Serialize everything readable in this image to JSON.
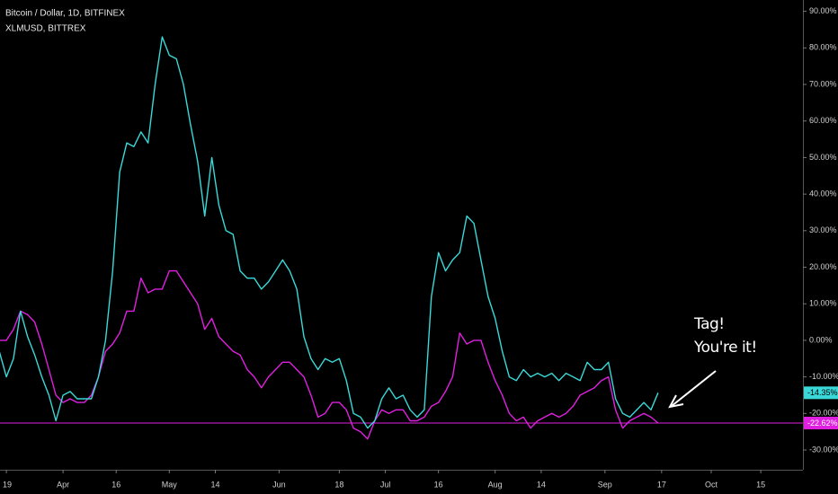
{
  "chart_data": {
    "type": "line",
    "x": [
      -18,
      -16,
      -14,
      -12,
      -10,
      -8,
      -6,
      -4,
      -2,
      0,
      2,
      4,
      6,
      8,
      10,
      12,
      14,
      16,
      18,
      20,
      22,
      24,
      26,
      28,
      30,
      32,
      34,
      36,
      38,
      40,
      42,
      44,
      46,
      48,
      50,
      52,
      54,
      56,
      58,
      60,
      62,
      64,
      66,
      68,
      70,
      72,
      74,
      76,
      78,
      80,
      82,
      84,
      86,
      88,
      90,
      92,
      94,
      96,
      98,
      100,
      102,
      104,
      106,
      108,
      110,
      112,
      114,
      116,
      118,
      120,
      122,
      124,
      126,
      128,
      130,
      132,
      134,
      136,
      138,
      140,
      142,
      144,
      146,
      148,
      150,
      152,
      154,
      156,
      158,
      160,
      162,
      164,
      166,
      168
    ],
    "series": [
      {
        "name": "Bitcoin / Dollar, 1D, BITFINEX",
        "color": "#e020e0",
        "price_line": true,
        "values": [
          0,
          0,
          3,
          8,
          7,
          5,
          -1,
          -8,
          -15,
          -17,
          -16,
          -17,
          -17,
          -15,
          -10,
          -3,
          -1,
          2,
          8,
          8,
          17,
          13,
          14,
          14,
          19,
          19,
          16,
          13,
          10,
          3,
          6,
          1,
          -1,
          -3,
          -4,
          -8,
          -10,
          -13,
          -10,
          -8,
          -6,
          -6,
          -8,
          -10,
          -15,
          -21,
          -20,
          -17,
          -17,
          -19,
          -24,
          -25,
          -27,
          -22,
          -19,
          -20,
          -19,
          -19,
          -22,
          -22,
          -21,
          -18,
          -17,
          -14,
          -10,
          2,
          -1,
          0,
          0,
          -6,
          -11,
          -15,
          -20,
          -22,
          -21,
          -24,
          -22,
          -21,
          -20,
          -21,
          -20,
          -18,
          -15,
          -14,
          -13,
          -11,
          -10,
          -19,
          -24,
          -22,
          -21,
          -20,
          -21,
          -22.62
        ],
        "value_labels": [
          null,
          null,
          null,
          null,
          null,
          null,
          null,
          null,
          null,
          null,
          null,
          null,
          null,
          null,
          null,
          null,
          null,
          null,
          null,
          null,
          null,
          null,
          null,
          null,
          null,
          null,
          null,
          null,
          null,
          null,
          null,
          null,
          null,
          null,
          null,
          null,
          null,
          null,
          null,
          null,
          null,
          null,
          null,
          null,
          null,
          null,
          null,
          null,
          null,
          null,
          null,
          null,
          null,
          null,
          null,
          null,
          null,
          null,
          null,
          null,
          null,
          null,
          null,
          null,
          null,
          null,
          null,
          null,
          null,
          null,
          null,
          null,
          null,
          null,
          null,
          null,
          null,
          null,
          null,
          null,
          null,
          null,
          null,
          null,
          null,
          null,
          null,
          null,
          null,
          null,
          null,
          null,
          null,
          "-22.62%"
        ]
      },
      {
        "name": "XLMUSD, BITTREX",
        "color": "#3ad8d8",
        "values": [
          -3,
          -10,
          -5,
          8,
          1,
          -4,
          -10,
          -15,
          -22,
          -15,
          -14,
          -16,
          -16,
          -16,
          -10,
          0,
          19,
          46,
          54,
          53,
          57,
          54,
          70,
          83,
          78,
          77,
          70,
          59,
          49,
          34,
          50,
          37,
          30,
          29,
          19,
          17,
          17,
          14,
          16,
          19,
          22,
          19,
          14,
          1,
          -5,
          -8,
          -5,
          -6,
          -5,
          -11,
          -20,
          -21,
          -24,
          -22,
          -16,
          -13,
          -16,
          -15,
          -19,
          -21,
          -19,
          12,
          24,
          19,
          22,
          24,
          34,
          32,
          22,
          12,
          6,
          -3,
          -10,
          -11,
          -8,
          -10,
          -9,
          -10,
          -9,
          -11,
          -9,
          -10,
          -11,
          -6,
          -8,
          -8,
          -6,
          -16,
          -20,
          -21,
          -19,
          -17,
          -19,
          -14.35
        ],
        "value_labels": [
          null,
          null,
          null,
          null,
          null,
          null,
          null,
          null,
          null,
          null,
          null,
          null,
          null,
          null,
          null,
          null,
          null,
          null,
          null,
          null,
          null,
          null,
          null,
          null,
          null,
          null,
          null,
          null,
          null,
          null,
          null,
          null,
          null,
          null,
          null,
          null,
          null,
          null,
          null,
          null,
          null,
          null,
          null,
          null,
          null,
          null,
          null,
          null,
          null,
          null,
          null,
          null,
          null,
          null,
          null,
          null,
          null,
          null,
          null,
          null,
          null,
          null,
          null,
          null,
          null,
          null,
          null,
          null,
          null,
          null,
          null,
          null,
          null,
          null,
          null,
          null,
          null,
          null,
          null,
          null,
          null,
          null,
          null,
          null,
          null,
          null,
          null,
          null,
          null,
          null,
          null,
          null,
          null,
          "-14.35%"
        ]
      }
    ],
    "xlim": [
      -17.8,
      208.9
    ],
    "xticks": [
      {
        "value": -16,
        "label": "19"
      },
      {
        "value": 0,
        "label": "Apr"
      },
      {
        "value": 15,
        "label": "16"
      },
      {
        "value": 30,
        "label": "May"
      },
      {
        "value": 43,
        "label": "14"
      },
      {
        "value": 61,
        "label": "Jun"
      },
      {
        "value": 78,
        "label": "18"
      },
      {
        "value": 91,
        "label": "Jul"
      },
      {
        "value": 106,
        "label": "16"
      },
      {
        "value": 122,
        "label": "Aug"
      },
      {
        "value": 135,
        "label": "14"
      },
      {
        "value": 153,
        "label": "Sep"
      },
      {
        "value": 169,
        "label": "17"
      },
      {
        "value": 183,
        "label": "Oct"
      },
      {
        "value": 197,
        "label": "15"
      }
    ],
    "ylim": [
      -35.4,
      93.1
    ],
    "yticks": [
      {
        "value": 90,
        "label": "90.00%"
      },
      {
        "value": 80,
        "label": "80.00%"
      },
      {
        "value": 70,
        "label": "70.00%"
      },
      {
        "value": 60,
        "label": "60.00%"
      },
      {
        "value": 50,
        "label": "50.00%"
      },
      {
        "value": 40,
        "label": "40.00%"
      },
      {
        "value": 30,
        "label": "30.00%"
      },
      {
        "value": 20,
        "label": "20.00%"
      },
      {
        "value": 10,
        "label": "10.00%"
      },
      {
        "value": 0,
        "label": "0.00%"
      },
      {
        "value": -10,
        "label": "-10.00%"
      },
      {
        "value": -20,
        "label": "-20.00%"
      },
      {
        "value": -30,
        "label": "-30.00%"
      }
    ],
    "grid": false,
    "annotations": [
      "Tag!",
      "You're it!"
    ]
  }
}
